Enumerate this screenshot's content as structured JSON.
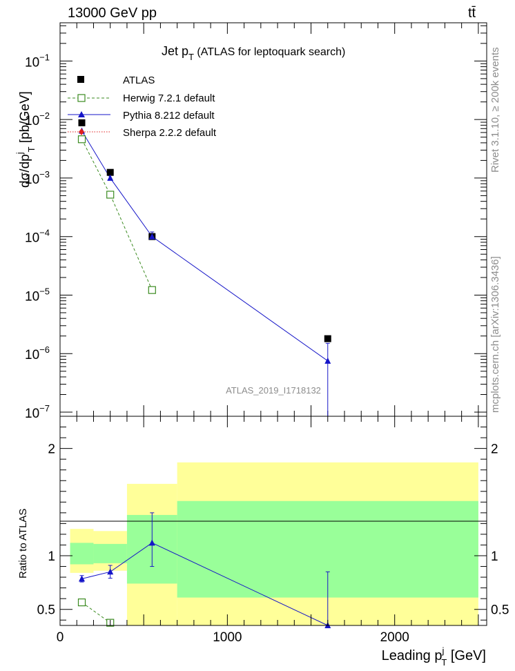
{
  "header": {
    "left": "13000 GeV pp",
    "right": "tt̄"
  },
  "side_text": {
    "rivet": "Rivet 3.1.10, ≥ 200k events",
    "mcplots": "mcplots.cern.ch [arXiv:1306.3436]"
  },
  "chart_data": [
    {
      "type": "scatter",
      "panel": "main",
      "title_main": "Jet p",
      "title_sub": "T",
      "title_rest": " (ATLAS for leptoquark search)",
      "ylabel": "dσ/dp",
      "ylabel_sup": "j",
      "ylabel_sub": "T",
      "ylabel_unit": " [pb/GeV]",
      "yscale": "log",
      "ylim": [
        8.5e-08,
        0.45
      ],
      "xlim": [
        0,
        2550
      ],
      "watermark": "ATLAS_2019_I1718132",
      "legend_position": "top-left",
      "y_tick_labels": [
        {
          "base": "10",
          "exp": "−1",
          "value": 0.1
        },
        {
          "base": "10",
          "exp": "−2",
          "value": 0.01
        },
        {
          "base": "10",
          "exp": "−3",
          "value": 0.001
        },
        {
          "base": "10",
          "exp": "−4",
          "value": 0.0001
        },
        {
          "base": "10",
          "exp": "−5",
          "value": 1e-05
        },
        {
          "base": "10",
          "exp": "−6",
          "value": 1e-06
        },
        {
          "base": "10",
          "exp": "−7",
          "value": 1e-07
        }
      ],
      "series": [
        {
          "name": "ATLAS",
          "color": "#000000",
          "marker": "square",
          "x": [
            130,
            300,
            550,
            1600
          ],
          "y": [
            0.0088,
            0.00125,
            0.0001,
            1.8e-06
          ]
        },
        {
          "name": "Herwig 7.2.1 default",
          "color": "#3a8a1f",
          "marker": "open-square",
          "line": "dashed",
          "x": [
            130,
            300,
            550
          ],
          "y": [
            0.0046,
            0.00052,
            1.22e-05
          ]
        },
        {
          "name": "Pythia 8.212 default",
          "color": "#1515c8",
          "marker": "triangle",
          "line": "solid",
          "x": [
            130,
            300,
            550,
            1600
          ],
          "y": [
            0.0064,
            0.001,
            0.0001,
            7.5e-07
          ],
          "err_low": [
            0.0,
            0.0,
            1e-05,
            7.4e-07
          ],
          "err_high": [
            0.0,
            0.0,
            2e-05,
            7.5e-07
          ]
        },
        {
          "name": "Sherpa 2.2.2 default",
          "color": "#e02020",
          "marker": "diamond",
          "line": "dotted",
          "x": [],
          "y": []
        }
      ]
    },
    {
      "type": "scatter",
      "panel": "ratio",
      "ylabel": "Ratio to ATLAS",
      "ylim": [
        0.35,
        2.3
      ],
      "xlim": [
        0,
        2550
      ],
      "xlabel": "Leading p",
      "xlabel_sup": "j",
      "xlabel_sub": "T",
      "xlabel_unit": " [GeV]",
      "x_tick_labels": [
        "0",
        "1000",
        "2000"
      ],
      "x_ticks": [
        0,
        1000,
        2000
      ],
      "y_tick_labels": [
        "0.5",
        "1",
        "2"
      ],
      "y_ticks": [
        0.5,
        1,
        2
      ],
      "bands": [
        {
          "x0": 60,
          "x1": 200,
          "yellow": [
            0.84,
            1.25
          ],
          "green": [
            0.92,
            1.12
          ]
        },
        {
          "x0": 200,
          "x1": 400,
          "yellow": [
            0.86,
            1.23
          ],
          "green": [
            0.93,
            1.11
          ]
        },
        {
          "x0": 400,
          "x1": 700,
          "yellow": [
            0.35,
            1.67
          ],
          "green": [
            0.74,
            1.38
          ]
        },
        {
          "x0": 700,
          "x1": 2500,
          "yellow": [
            0.35,
            1.87
          ],
          "green": [
            0.61,
            1.51
          ]
        }
      ],
      "series": [
        {
          "name": "Herwig 7.2.1 default",
          "color": "#3a8a1f",
          "marker": "open-square",
          "line": "dashed",
          "x": [
            130,
            300
          ],
          "y": [
            0.565,
            0.375
          ]
        },
        {
          "name": "Pythia 8.212 default",
          "color": "#1515c8",
          "marker": "triangle",
          "line": "solid",
          "x": [
            130,
            300,
            550,
            1600
          ],
          "y": [
            0.785,
            0.85,
            1.12,
            0.35
          ],
          "err_low": [
            0.03,
            0.06,
            0.22,
            0.0
          ],
          "err_high": [
            0.03,
            0.06,
            0.28,
            0.5
          ]
        }
      ]
    }
  ]
}
